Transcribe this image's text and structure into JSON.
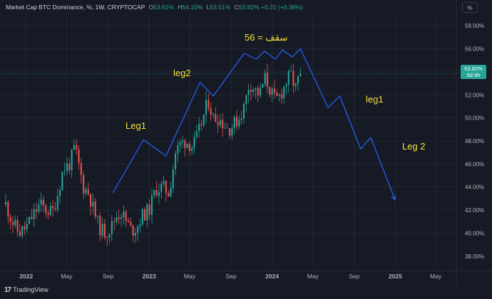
{
  "header": {
    "symbol": "Market Cap BTC Dominance, %, 1W, CRYPTOCAP",
    "ohlc": {
      "o_label": "O",
      "o_value": "53.61%",
      "h_label": "H",
      "h_value": "54.10%",
      "l_label": "L",
      "l_value": "53.51%",
      "c_label": "C",
      "c_value": "53.82%",
      "change": "+0.20 (+0.38%)"
    },
    "percent_button": "%"
  },
  "price_tag": {
    "value": "53.82%",
    "countdown": "5d 9h"
  },
  "branding": {
    "mark": "17",
    "name": "TradingView"
  },
  "annotations": {
    "ceiling": "56 = سقف",
    "leg1_up": "Leg1",
    "leg2_up": "leg2",
    "leg1_down": "leg1",
    "leg2_down": "Leg 2"
  },
  "colors": {
    "background": "#161a25",
    "up": "#26a69a",
    "down": "#ef5350",
    "projection": "#2962ff",
    "annotation": "#f5e23b",
    "grid": "#232733"
  },
  "chart_data": {
    "type": "candlestick",
    "title": "Market Cap BTC Dominance, %, 1W, CRYPTOCAP",
    "ylim": [
      37,
      59
    ],
    "yticks": [
      "38.00%",
      "40.00%",
      "42.00%",
      "44.00%",
      "46.00%",
      "48.00%",
      "50.00%",
      "52.00%",
      "54.00%",
      "56.00%",
      "58.00%"
    ],
    "ytick_values": [
      38,
      40,
      42,
      44,
      46,
      48,
      50,
      52,
      54,
      56,
      58
    ],
    "xticks": [
      "2022",
      "May",
      "Sep",
      "2023",
      "May",
      "Sep",
      "2024",
      "May",
      "Sep",
      "2025",
      "May"
    ],
    "xtick_dates": [
      "2022-01-01",
      "2022-05-01",
      "2022-09-01",
      "2023-01-01",
      "2023-05-01",
      "2023-09-01",
      "2024-01-01",
      "2024-05-01",
      "2024-09-01",
      "2025-01-01",
      "2025-05-01"
    ],
    "xlim": [
      "2021-10-15",
      "2025-07-01"
    ],
    "grid": true,
    "last_price": 53.82,
    "close_path": [
      [
        "2021-11-01",
        42.5
      ],
      [
        "2021-11-20",
        41.0
      ],
      [
        "2021-12-10",
        40.0
      ],
      [
        "2022-01-01",
        40.5
      ],
      [
        "2022-01-20",
        41.5
      ],
      [
        "2022-02-10",
        42.5
      ],
      [
        "2022-03-01",
        42.0
      ],
      [
        "2022-03-20",
        41.8
      ],
      [
        "2022-04-05",
        43.5
      ],
      [
        "2022-04-20",
        45.5
      ],
      [
        "2022-05-10",
        46.0
      ],
      [
        "2022-05-25",
        47.5
      ],
      [
        "2022-06-05",
        46.0
      ],
      [
        "2022-06-20",
        44.0
      ],
      [
        "2022-07-05",
        43.5
      ],
      [
        "2022-07-20",
        42.0
      ],
      [
        "2022-08-05",
        40.5
      ],
      [
        "2022-08-25",
        40.0
      ],
      [
        "2022-09-10",
        40.5
      ],
      [
        "2022-09-25",
        41.5
      ],
      [
        "2022-10-10",
        41.8
      ],
      [
        "2022-10-25",
        41.0
      ],
      [
        "2022-11-10",
        40.2
      ],
      [
        "2022-11-25",
        40.5
      ],
      [
        "2022-12-10",
        41.5
      ],
      [
        "2023-01-01",
        42.0
      ],
      [
        "2023-01-20",
        43.8
      ],
      [
        "2023-02-10",
        44.0
      ],
      [
        "2023-03-01",
        43.5
      ],
      [
        "2023-03-20",
        47.0
      ],
      [
        "2023-04-05",
        47.8
      ],
      [
        "2023-04-20",
        48.0
      ],
      [
        "2023-05-10",
        47.5
      ],
      [
        "2023-05-25",
        48.5
      ],
      [
        "2023-06-10",
        50.0
      ],
      [
        "2023-06-25",
        51.5
      ],
      [
        "2023-07-10",
        50.0
      ],
      [
        "2023-07-25",
        50.0
      ],
      [
        "2023-08-10",
        49.5
      ],
      [
        "2023-08-25",
        49.0
      ],
      [
        "2023-09-10",
        49.5
      ],
      [
        "2023-09-25",
        50.0
      ],
      [
        "2023-10-10",
        51.0
      ],
      [
        "2023-10-25",
        53.0
      ],
      [
        "2023-11-10",
        52.5
      ],
      [
        "2023-11-25",
        52.0
      ],
      [
        "2023-12-10",
        53.5
      ],
      [
        "2023-12-25",
        52.5
      ],
      [
        "2024-01-10",
        51.5
      ],
      [
        "2024-01-25",
        52.0
      ],
      [
        "2024-02-10",
        53.0
      ],
      [
        "2024-02-25",
        53.8
      ],
      [
        "2024-03-10",
        52.5
      ],
      [
        "2024-03-25",
        53.82
      ]
    ],
    "projection": {
      "name": "projection",
      "points": [
        [
          "2022-09-15",
          43.5
        ],
        [
          "2022-12-15",
          48.1
        ],
        [
          "2023-02-20",
          46.7
        ],
        [
          "2023-06-01",
          53.1
        ],
        [
          "2023-07-10",
          51.9
        ],
        [
          "2023-10-10",
          55.6
        ],
        [
          "2023-11-15",
          55.1
        ],
        [
          "2023-12-10",
          55.8
        ],
        [
          "2024-01-10",
          55.1
        ],
        [
          "2024-02-01",
          55.9
        ],
        [
          "2024-03-01",
          55.3
        ],
        [
          "2024-03-25",
          56.0
        ],
        [
          "2024-06-15",
          50.9
        ],
        [
          "2024-07-20",
          51.9
        ],
        [
          "2024-09-20",
          47.3
        ],
        [
          "2024-10-20",
          48.3
        ],
        [
          "2024-12-31",
          42.9
        ]
      ]
    }
  }
}
